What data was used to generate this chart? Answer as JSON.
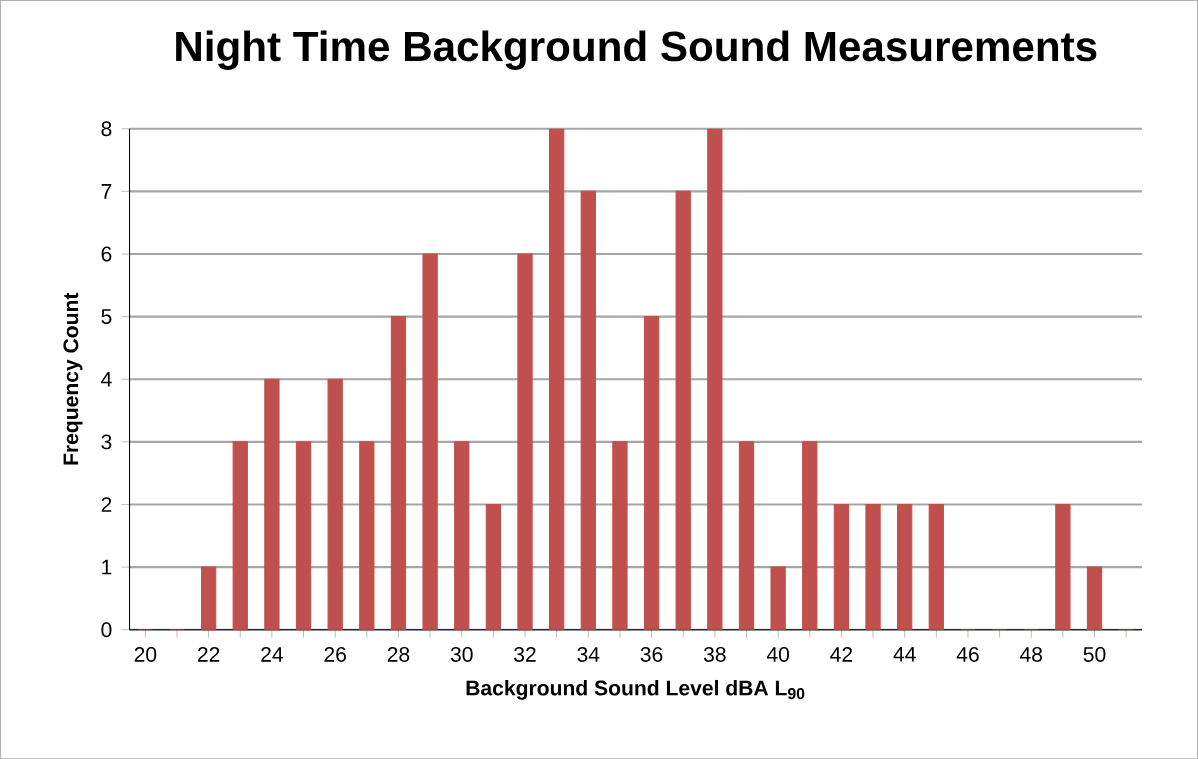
{
  "chart_data": {
    "type": "bar",
    "title": "Night Time Background Sound Measurements",
    "xlabel": "Background Sound Level dBA L$_{90}$",
    "ylabel": "Frequency Count",
    "categories": [
      "20",
      null,
      "22",
      null,
      "24",
      null,
      "26",
      null,
      "28",
      null,
      "30",
      null,
      "32",
      null,
      "34",
      null,
      "36",
      null,
      "38",
      null,
      "40",
      null,
      "42",
      null,
      "44",
      null,
      "46",
      null,
      "48",
      null,
      "50",
      null
    ],
    "values": [
      0,
      0,
      1,
      3,
      4,
      3,
      4,
      3,
      5,
      6,
      3,
      2,
      6,
      8,
      7,
      3,
      5,
      7,
      8,
      3,
      1,
      3,
      2,
      2,
      2,
      2,
      0,
      0,
      0,
      2,
      1,
      0
    ],
    "color": "#c0504d",
    "ylim": [
      0,
      8
    ],
    "yticks": [
      0,
      1,
      2,
      3,
      4,
      5,
      6,
      7,
      8
    ],
    "grid": "y"
  }
}
